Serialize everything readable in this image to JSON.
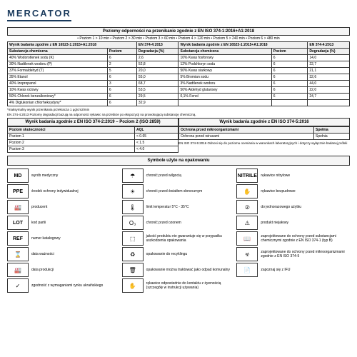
{
  "logo": "MERCATOR",
  "permeation": {
    "title": "Poziomy odporności na przenikanie zgodnie z EN ISO 374-1:2016+A1:2018",
    "levels": "• Poziom 1 > 10 min • Poziom 2 > 30 min • Poziom 3 > 60 min • Poziom 4 > 120 min • Poziom 5 > 240 min • Poziom 6 > 480 min",
    "h1": "Wynik badania zgodnie z EN 16523-1:2015+A1:2018",
    "h2": "EN 374-4:2013",
    "h3": "Wynik badania zgodnie z EN 16523-1:2015+A1:2018",
    "h4": "EN 374-4:2013",
    "col1": "Substancja chemiczna",
    "col2": "Poziom",
    "col3": "Degradacja (%)",
    "rows_left": [
      [
        "40% Wodorotlenek sodu (K)",
        "6",
        "2,6"
      ],
      [
        "30% Nadtlenek wodoru (P)",
        "2",
        "52,8"
      ],
      [
        "37% Formaldehyd (T)",
        "5",
        "20,0"
      ],
      [
        "35% Etanol",
        "6",
        "55,0"
      ],
      [
        "40% Izopropanol",
        "3",
        "68,7"
      ],
      [
        "10% Kwas octowy",
        "6",
        "53,5"
      ],
      [
        "50% Chlorek benzalkoniowy*",
        "6",
        "29,5"
      ],
      [
        "4% Diglukonian chlorheksydyny*",
        "6",
        "32,9"
      ]
    ],
    "rows_right": [
      [
        "10% Kwas fosforowy",
        "6",
        "14,0"
      ],
      [
        "12% Podchloryn sodu",
        "6",
        "22,7"
      ],
      [
        "50% Kwas siarkowy",
        "6",
        "21,1"
      ],
      [
        "5% Bromian sodu",
        "6",
        "32,6"
      ],
      [
        "3% Nadtlenek wodoru",
        "6",
        "44,0"
      ],
      [
        "50% Aldehyd glutarowy",
        "6",
        "22,0"
      ],
      [
        "0,1% Fenol",
        "6",
        "24,7"
      ]
    ],
    "note1": "*maksymalny wynik przenikania przekracza 1 μg/cm2/min",
    "note2": "EN 374-4:2013 Poziomy degradacji bazują na odporności rękawic na przebicie po ekspozycji na prowokującą substancję chemiczną."
  },
  "table2": {
    "left_title": "Wynik badania zgodnie z EN ISO 374-2:2019 – Poziom 2 (ISO 2859)",
    "right_title": "Wynik badania zgodnie z EN ISO 374-5:2016",
    "lc1": "Poziom skuteczności",
    "lc2": "AQL",
    "lrows": [
      [
        "Poziom 1",
        "< 0.65"
      ],
      [
        "Poziom 2",
        "< 1.5"
      ],
      [
        "Poziom 3",
        "< 4.0"
      ]
    ],
    "rc1": "Ochrona przed mikroorganizmami",
    "rc2": "Spełnia",
    "rrows": [
      [
        "Ochrona przed wirusami",
        "Spełnia"
      ]
    ],
    "rnote": "EN ISO 374-5:2016 Odnosi się do poziomu oceniania w warunkach laboratoryjnych i dotyczy wyłącznie badanej próbki"
  },
  "symbols_title": "Symbole użyte na opakowaniu",
  "symbols": [
    {
      "s": "MD",
      "d": "wyrób medyczny",
      "box": true
    },
    {
      "s": "☂",
      "d": "chronić przed wilgocią"
    },
    {
      "s": "NITRILE",
      "d": "rękawice nitrylowe",
      "box": true
    },
    {
      "s": "PPE",
      "d": "środek ochrony indywidualnej",
      "box": true
    },
    {
      "s": "☀",
      "d": "chronić przed światłem słonecznym"
    },
    {
      "s": "✋",
      "d": "rękawice bezpudrowe"
    },
    {
      "s": "🏭",
      "d": "producent"
    },
    {
      "s": "🌡",
      "d": "limit temperatur 5°C - 35°C"
    },
    {
      "s": "②",
      "d": "do jednorazowego użytku"
    },
    {
      "s": "LOT",
      "d": "kod partii",
      "box": true
    },
    {
      "s": "O₃",
      "d": "chronić przed ozonem"
    },
    {
      "s": "⚠",
      "d": "produkt niejałowy"
    },
    {
      "s": "REF",
      "d": "numer katalogowy",
      "box": true
    },
    {
      "s": "⬚",
      "d": "jakość produktu nie gwarantuje się w przypadku uszkodzenia opakowania"
    },
    {
      "s": "📖",
      "d": "zaprojektowane do ochrony przed substancjami chemicznymi zgodnie z EN ISO 374-1 (typ B)"
    },
    {
      "s": "⌛",
      "d": "data ważności"
    },
    {
      "s": "♻",
      "d": "opakowanie do recyklingu"
    },
    {
      "s": "☣",
      "d": "zaprojektowane do ochrony przed mikroorganizmami zgodnie z EN ISO 374-5"
    },
    {
      "s": "🏭",
      "d": "data produkcji"
    },
    {
      "s": "🗑",
      "d": "opakowanie można traktować jako odpad komunalny"
    },
    {
      "s": "📄",
      "d": "zapoznaj się z IFU"
    },
    {
      "s": "✓",
      "d": "zgodność z wymaganiami rynku ukraińskiego"
    },
    {
      "s": "✋",
      "d": "rękawice odpowiednie do kontaktu z żywnością (szczegóły w instrukcji używania)"
    }
  ]
}
